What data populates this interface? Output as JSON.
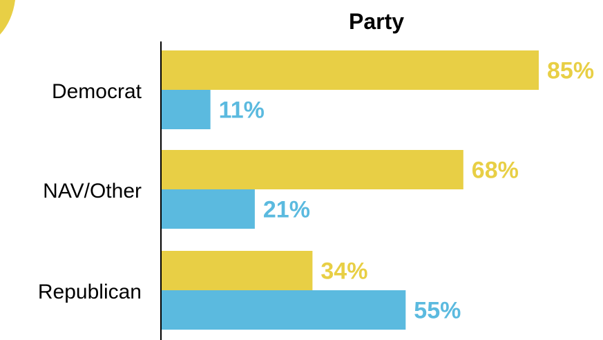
{
  "chart_data": {
    "type": "bar",
    "orientation": "horizontal",
    "title": "Party",
    "categories": [
      "Democrat",
      "NAV/Other",
      "Republican"
    ],
    "series": [
      {
        "values": [
          85,
          68,
          34
        ],
        "labels": [
          "85%",
          "68%",
          "34%"
        ],
        "color": "#E8CF45"
      },
      {
        "values": [
          11,
          21,
          55
        ],
        "labels": [
          "11%",
          "21%",
          "55%"
        ],
        "color": "#5BBADF"
      }
    ],
    "xlim": [
      0,
      100
    ],
    "grid": false,
    "legend": "none"
  },
  "colors": {
    "accent_yellow": "#E8CF45",
    "accent_blue": "#5BBADF",
    "axis": "#000000"
  }
}
